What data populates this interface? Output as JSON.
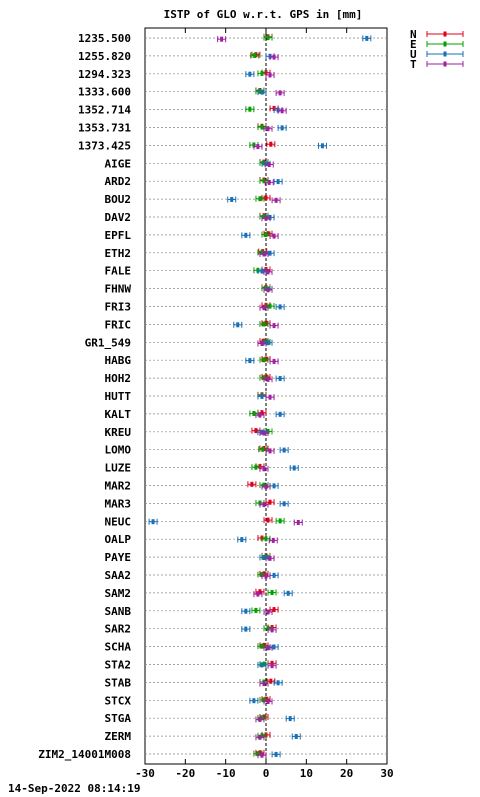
{
  "chart_data": {
    "type": "scatter",
    "title": "ISTP of GLO w.r.t. GPS in [mm]",
    "xlim": [
      -30,
      30
    ],
    "xticks": [
      -30,
      -20,
      -10,
      0,
      10,
      20,
      30
    ],
    "grid": "horizontal dotted",
    "legend_position": "top-right",
    "categories": [
      "1235.500",
      "1255.820",
      "1294.323",
      "1333.600",
      "1352.714",
      "1353.731",
      "1373.425",
      "AIGE",
      "ARD2",
      "BOU2",
      "DAV2",
      "EPFL",
      "ETH2",
      "FALE",
      "FHNW",
      "FRI3",
      "FRIC",
      "GR1_549",
      "HABG",
      "HOH2",
      "HUTT",
      "KALT",
      "KREU",
      "LOMO",
      "LUZE",
      "MAR2",
      "MAR3",
      "NEUC",
      "OALP",
      "PAYE",
      "SAA2",
      "SAM2",
      "SANB",
      "SAR2",
      "SCHA",
      "STA2",
      "STAB",
      "STCX",
      "STGA",
      "ZERM",
      "ZIM2_14001M008"
    ],
    "series": [
      {
        "name": "N",
        "color": "#e0001a",
        "values": [
          0.5,
          -2.5,
          0,
          -1.5,
          2,
          -1,
          1.2,
          -0.5,
          -0.5,
          0,
          -0.5,
          0.5,
          -0.8,
          0,
          0,
          0,
          0,
          -0.5,
          0,
          0,
          -1,
          -1,
          -2.5,
          -0.5,
          -1.5,
          -3.5,
          1,
          0.5,
          -1,
          0,
          -0.5,
          -1.5,
          2,
          1.5,
          -0.5,
          1.5,
          1.2,
          0,
          -0.5,
          0,
          -1.5
        ]
      },
      {
        "name": "E",
        "color": "#00a000",
        "values": [
          0.5,
          -2.8,
          -1,
          -1.5,
          -4,
          -1,
          -3,
          -0.5,
          -0.5,
          -1.5,
          -0.5,
          0,
          -1,
          -2,
          0,
          1,
          -0.5,
          0,
          -0.5,
          -0.5,
          -1,
          -3,
          0.5,
          -0.8,
          -2.5,
          -0.5,
          -1.5,
          3.5,
          0,
          0,
          -1,
          1.5,
          -2.5,
          0.5,
          -1,
          -0.5,
          -0.5,
          -0.5,
          -1,
          -1,
          -2
        ]
      },
      {
        "name": "U",
        "color": "#1a6fb5",
        "values": [
          25,
          1,
          -4,
          -1,
          3,
          4,
          14,
          0,
          3,
          -8.5,
          1,
          -5,
          1,
          -1,
          0.5,
          3.5,
          -7,
          0.5,
          -4,
          3.5,
          -1,
          3.5,
          -1,
          4.5,
          7,
          2,
          4.5,
          -28,
          -6,
          -0.5,
          2,
          5.5,
          -5,
          -5,
          2,
          -1,
          3,
          -3,
          6,
          7.5,
          2.5
        ]
      },
      {
        "name": "T",
        "color": "#a020a0",
        "values": [
          -11,
          2,
          1,
          3.5,
          4,
          0.5,
          -2,
          0.8,
          0.8,
          2.5,
          0,
          2,
          -0.5,
          0.5,
          0.5,
          -0.5,
          2,
          -1,
          2,
          0.5,
          1,
          -1.5,
          -0.5,
          1,
          -0.5,
          0,
          -0.5,
          8,
          1.8,
          1,
          0,
          -2,
          0.5,
          1.5,
          0.5,
          1.5,
          -0.5,
          0.5,
          -1.5,
          -1.5,
          -1
        ]
      }
    ]
  },
  "footer": {
    "timestamp": "14-Sep-2022 08:14:19"
  }
}
